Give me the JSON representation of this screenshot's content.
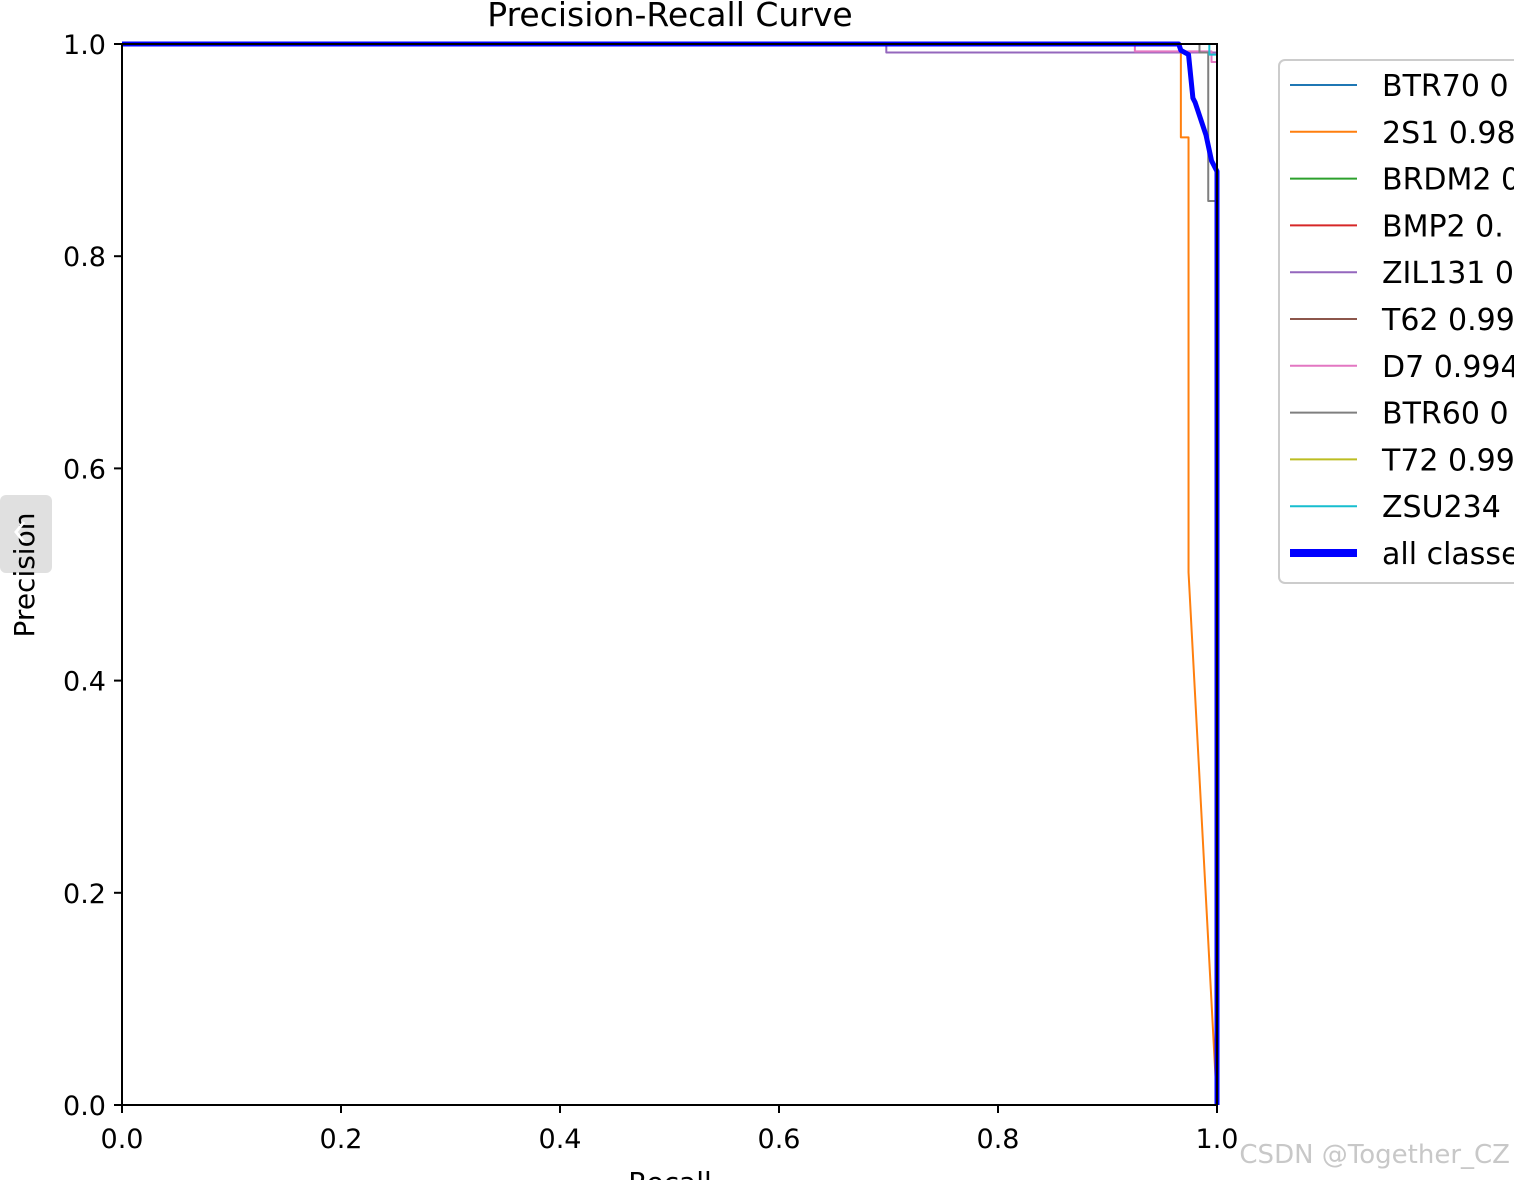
{
  "chart_data": {
    "type": "line",
    "title": "Precision-Recall Curve",
    "xlabel": "Recall",
    "ylabel": "Precision",
    "xlim": [
      0,
      1
    ],
    "ylim": [
      0,
      1
    ],
    "xticks": [
      {
        "value": 0,
        "label": "0.0"
      },
      0.2,
      0.4,
      0.6,
      0.8,
      {
        "value": 1,
        "label": "1.0"
      }
    ],
    "yticks": [
      {
        "value": 0,
        "label": "0.0"
      },
      0.2,
      0.4,
      0.6,
      0.8,
      {
        "value": 1,
        "label": "1.0"
      }
    ],
    "series": [
      {
        "name": "BTR70 0",
        "color": "#1f77b4",
        "x": [
          0,
          1,
          1
        ],
        "values": [
          1,
          1,
          0
        ]
      },
      {
        "name": "2S1 0.98",
        "color": "#ff7f0e",
        "x": [
          0,
          0.967,
          0.967,
          0.974,
          0.974,
          1
        ],
        "values": [
          1,
          1,
          0.912,
          0.912,
          0.502,
          0
        ]
      },
      {
        "name": "BRDM2 0",
        "color": "#2ca02c",
        "x": [
          0,
          1,
          1
        ],
        "values": [
          1,
          1,
          0
        ]
      },
      {
        "name": "BMP2 0.",
        "color": "#d62728",
        "x": [
          0,
          1,
          1
        ],
        "values": [
          1,
          1,
          0
        ]
      },
      {
        "name": "ZIL131 0",
        "color": "#9467bd",
        "x": [
          0,
          0.698,
          0.698,
          1,
          1
        ],
        "values": [
          1,
          1,
          0.992,
          0.992,
          0
        ]
      },
      {
        "name": "T62 0.99",
        "color": "#8c564b",
        "x": [
          0,
          1,
          1
        ],
        "values": [
          1,
          1,
          0
        ]
      },
      {
        "name": "D7 0.994",
        "color": "#e377c2",
        "x": [
          0,
          0.925,
          0.925,
          0.995,
          0.995,
          1,
          1
        ],
        "values": [
          1,
          1,
          0.993,
          0.993,
          0.983,
          0.983,
          0
        ]
      },
      {
        "name": "BTR60 0",
        "color": "#7f7f7f",
        "x": [
          0,
          0.984,
          0.984,
          0.992,
          0.992,
          1,
          1
        ],
        "values": [
          1,
          1,
          0.992,
          0.992,
          0.852,
          0.852,
          0
        ]
      },
      {
        "name": "T72 0.99",
        "color": "#bcbd22",
        "x": [
          0,
          1,
          1
        ],
        "values": [
          1,
          1,
          0
        ]
      },
      {
        "name": "ZSU234",
        "color": "#17becf",
        "x": [
          0,
          0.993,
          0.993,
          1,
          1
        ],
        "values": [
          1,
          1,
          0.99,
          0.99,
          0
        ]
      },
      {
        "name": "all classe",
        "color": "#0000ff",
        "width": 5,
        "x": [
          0,
          0.965,
          0.967,
          0.974,
          0.978,
          0.98,
          0.99,
          0.995,
          1,
          1
        ],
        "values": [
          1,
          1,
          0.994,
          0.99,
          0.949,
          0.945,
          0.914,
          0.89,
          0.88,
          0
        ]
      }
    ],
    "watermark": "CSDN @Together_CZ"
  }
}
